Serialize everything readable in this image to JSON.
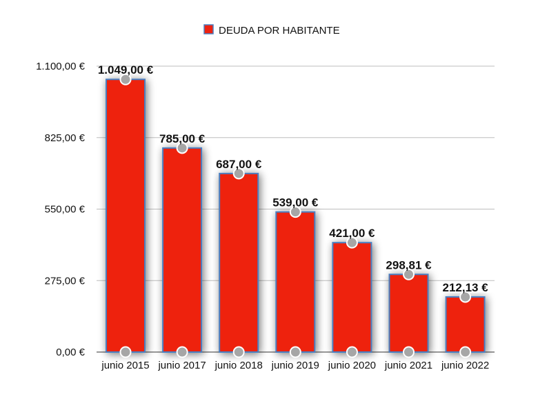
{
  "chart_data": {
    "type": "bar",
    "legend": {
      "label": "DEUDA POR HABITANTE",
      "position": "top-center"
    },
    "categories": [
      "junio 2015",
      "junio 2017",
      "junio 2018",
      "junio 2019",
      "junio 2020",
      "junio 2021",
      "junio 2022"
    ],
    "series": [
      {
        "name": "DEUDA POR HABITANTE",
        "values": [
          1049.0,
          785.0,
          687.0,
          539.0,
          421.0,
          298.81,
          212.13
        ],
        "labels": [
          "1.049,00 €",
          "785,00 €",
          "687,00 €",
          "539,00 €",
          "421,00 €",
          "298,81 €",
          "212,13 €"
        ]
      }
    ],
    "ylim": [
      0,
      1100
    ],
    "yticks": [
      0,
      275,
      550,
      825,
      1100
    ],
    "ytick_labels": [
      "0,00 €",
      "275,00 €",
      "550,00 €",
      "825,00 €",
      "1.100,00 €"
    ],
    "grid": true,
    "colors": {
      "bar": "#EE2211",
      "bar_border": "#4A7FC1",
      "marker": "#A6A6A6",
      "grid": "#BDBDBD"
    }
  }
}
